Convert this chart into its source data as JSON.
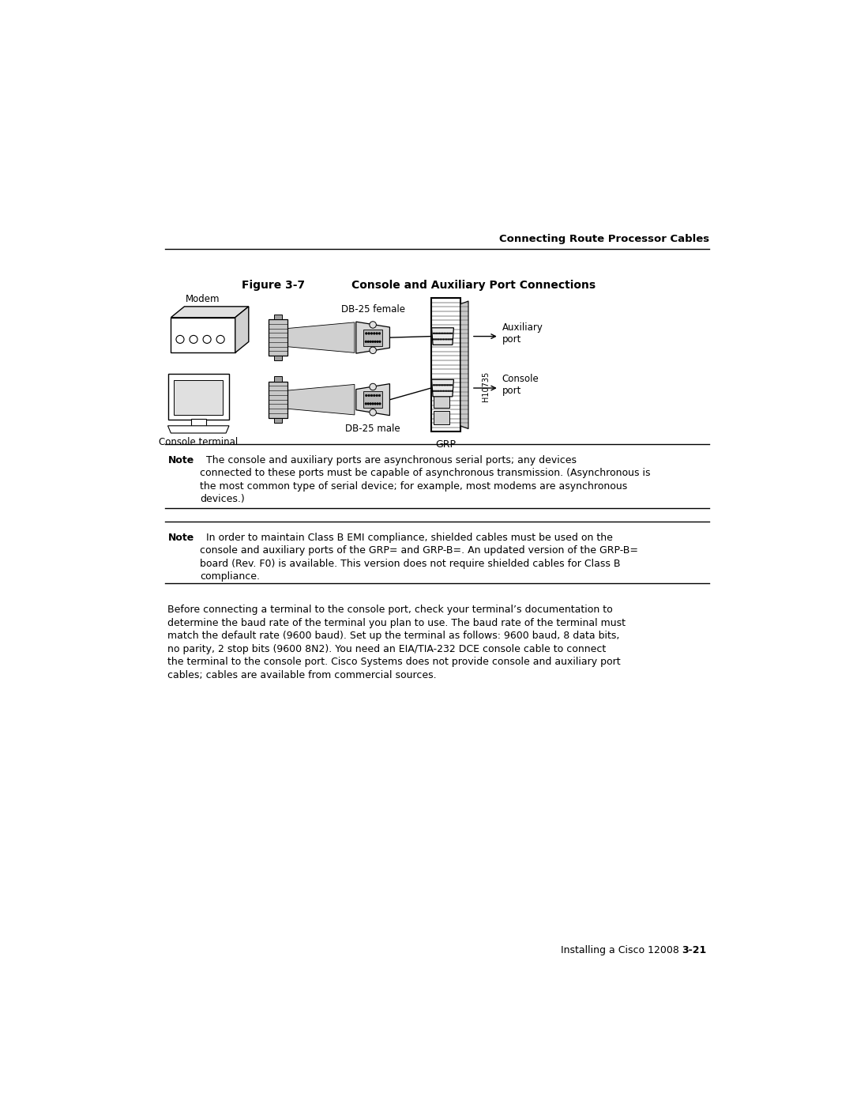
{
  "page_width": 10.8,
  "page_height": 13.97,
  "background_color": "#ffffff",
  "header_text": "Connecting Route Processor Cables",
  "figure_label": "Figure 3-7",
  "figure_title": "Console and Auxiliary Port Connections",
  "note1_bold": "Note",
  "note1_body": "  The console and auxiliary ports are asynchronous serial ports; any devices\nconnected to these ports must be capable of asynchronous transmission. (Asynchronous is\nthe most common type of serial device; for example, most modems are asynchronous\ndevices.)",
  "note2_bold": "Note",
  "note2_body": "  In order to maintain Class B EMI compliance, shielded cables must be used on the\nconsole and auxiliary ports of the GRP= and GRP-B=. An updated version of the GRP-B=\nboard (Rev. F0) is available. This version does not require shielded cables for Class B\ncompliance.",
  "body_text": "Before connecting a terminal to the console port, check your terminal’s documentation to\ndetermine the baud rate of the terminal you plan to use. The baud rate of the terminal must\nmatch the default rate (9600 baud). Set up the terminal as follows: 9600 baud, 8 data bits,\nno parity, 2 stop bits (9600 8N2). You need an EIA/TIA-232 DCE console cable to connect\nthe terminal to the console port. Cisco Systems does not provide console and auxiliary port\ncables; cables are available from commercial sources.",
  "footer_left": "Installing a Cisco 12008",
  "footer_right": "3-21"
}
